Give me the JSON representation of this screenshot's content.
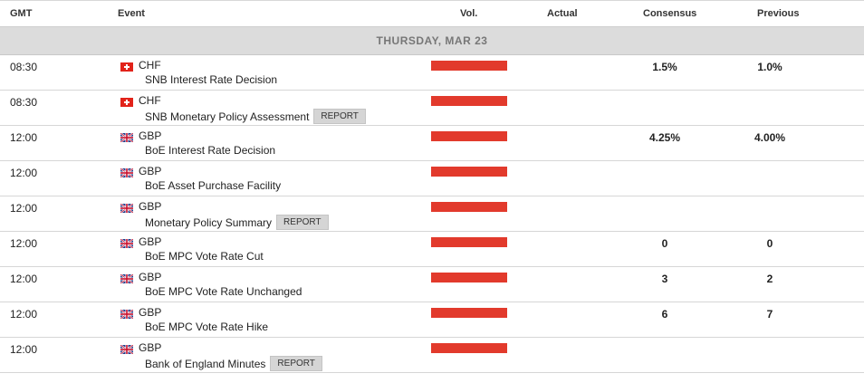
{
  "header": {
    "gmt": "GMT",
    "event": "Event",
    "vol": "Vol.",
    "actual": "Actual",
    "consensus": "Consensus",
    "previous": "Previous"
  },
  "day_label": "THURSDAY, MAR 23",
  "colors": {
    "volume_bar": "#e23a2c",
    "day_bar": "#dcdcdc"
  },
  "rows": [
    {
      "time": "08:30",
      "flag": "switzerland-flag-icon",
      "currency": "CHF",
      "event": "SNB Interest Rate Decision",
      "report": "",
      "actual": "",
      "consensus": "1.5%",
      "previous": "1.0%"
    },
    {
      "time": "08:30",
      "flag": "switzerland-flag-icon",
      "currency": "CHF",
      "event": "SNB Monetary Policy Assessment",
      "report": "REPORT",
      "actual": "",
      "consensus": "",
      "previous": ""
    },
    {
      "time": "12:00",
      "flag": "uk-flag-icon",
      "currency": "GBP",
      "event": "BoE Interest Rate Decision",
      "report": "",
      "actual": "",
      "consensus": "4.25%",
      "previous": "4.00%"
    },
    {
      "time": "12:00",
      "flag": "uk-flag-icon",
      "currency": "GBP",
      "event": "BoE Asset Purchase Facility",
      "report": "",
      "actual": "",
      "consensus": "",
      "previous": ""
    },
    {
      "time": "12:00",
      "flag": "uk-flag-icon",
      "currency": "GBP",
      "event": "Monetary Policy Summary",
      "report": "REPORT",
      "actual": "",
      "consensus": "",
      "previous": ""
    },
    {
      "time": "12:00",
      "flag": "uk-flag-icon",
      "currency": "GBP",
      "event": "BoE MPC Vote Rate Cut",
      "report": "",
      "actual": "",
      "consensus": "0",
      "previous": "0"
    },
    {
      "time": "12:00",
      "flag": "uk-flag-icon",
      "currency": "GBP",
      "event": "BoE MPC Vote Rate Unchanged",
      "report": "",
      "actual": "",
      "consensus": "3",
      "previous": "2"
    },
    {
      "time": "12:00",
      "flag": "uk-flag-icon",
      "currency": "GBP",
      "event": "BoE MPC Vote Rate Hike",
      "report": "",
      "actual": "",
      "consensus": "6",
      "previous": "7"
    },
    {
      "time": "12:00",
      "flag": "uk-flag-icon",
      "currency": "GBP",
      "event": "Bank of England Minutes",
      "report": "REPORT",
      "actual": "",
      "consensus": "",
      "previous": ""
    }
  ]
}
